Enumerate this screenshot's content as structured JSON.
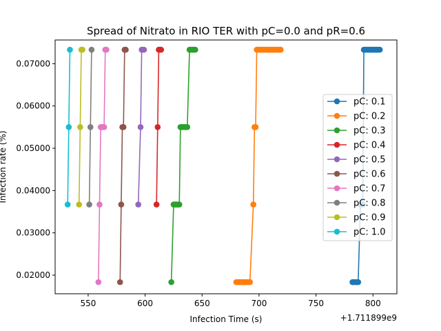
{
  "chart_data": {
    "type": "line",
    "title": "Spread of Nitrato in RIO TER with pC=0.0 and pR=0.6",
    "xlabel": "Infection Time (s)",
    "ylabel": "Infection rate (%)",
    "x_offset_label": "+1.711899e9",
    "xlim": [
      521,
      821
    ],
    "ylim": [
      0.0156,
      0.0756
    ],
    "x_ticks": [
      550,
      600,
      650,
      700,
      750,
      800
    ],
    "x_tick_labels": [
      "550",
      "600",
      "650",
      "700",
      "750",
      "800"
    ],
    "y_ticks": [
      0.02,
      0.03,
      0.04,
      0.05,
      0.06,
      0.07
    ],
    "y_tick_labels": [
      "0.02000",
      "0.03000",
      "0.04000",
      "0.05000",
      "0.06000",
      "0.07000"
    ],
    "grid": false,
    "legend_position": "right",
    "series": [
      {
        "name": "pC: 0.1",
        "color": "#1f77b4",
        "x": [
          782,
          783,
          784,
          785,
          786,
          787,
          789,
          790,
          791,
          792,
          793,
          794,
          795,
          796,
          797,
          798,
          799,
          800,
          801,
          802,
          803,
          804,
          805,
          806
        ],
        "y": [
          0.01835,
          0.01835,
          0.01835,
          0.01835,
          0.01835,
          0.01835,
          0.0367,
          0.0367,
          0.0367,
          0.0733,
          0.0733,
          0.0733,
          0.0733,
          0.0733,
          0.0733,
          0.0733,
          0.0733,
          0.0733,
          0.0733,
          0.0733,
          0.0733,
          0.0733,
          0.0733,
          0.0733
        ]
      },
      {
        "name": "pC: 0.2",
        "color": "#ff7f0e",
        "x": [
          680,
          681,
          682,
          683,
          684,
          685,
          686,
          687,
          688,
          689,
          690,
          691,
          692,
          695,
          696,
          697,
          698,
          699,
          700,
          701,
          702,
          703,
          704,
          705,
          706,
          707,
          708,
          709,
          710,
          711,
          712,
          713,
          714,
          715,
          716,
          717,
          718,
          719
        ],
        "y": [
          0.01835,
          0.01835,
          0.01835,
          0.01835,
          0.01835,
          0.01835,
          0.01835,
          0.01835,
          0.01835,
          0.01835,
          0.01835,
          0.01835,
          0.01835,
          0.0367,
          0.055,
          0.055,
          0.0733,
          0.0733,
          0.0733,
          0.0733,
          0.0733,
          0.0733,
          0.0733,
          0.0733,
          0.0733,
          0.0733,
          0.0733,
          0.0733,
          0.0733,
          0.0733,
          0.0733,
          0.0733,
          0.0733,
          0.0733,
          0.0733,
          0.0733,
          0.0733,
          0.0733
        ]
      },
      {
        "name": "pC: 0.3",
        "color": "#2ca02c",
        "x": [
          623,
          625,
          626,
          627,
          628,
          629,
          630,
          631,
          632,
          633,
          634,
          635,
          636,
          637,
          639,
          640,
          641,
          642,
          643,
          644
        ],
        "y": [
          0.01835,
          0.0367,
          0.0367,
          0.0367,
          0.0367,
          0.0367,
          0.0367,
          0.055,
          0.055,
          0.055,
          0.055,
          0.055,
          0.055,
          0.055,
          0.0733,
          0.0733,
          0.0733,
          0.0733,
          0.0733,
          0.0733
        ]
      },
      {
        "name": "pC: 0.4",
        "color": "#d62728",
        "x": [
          610,
          611,
          612,
          613,
          614
        ],
        "y": [
          0.0367,
          0.055,
          0.0733,
          0.0733,
          0.0733
        ]
      },
      {
        "name": "pC: 0.5",
        "color": "#9467bd",
        "x": [
          594,
          596,
          597,
          598,
          599
        ],
        "y": [
          0.0367,
          0.055,
          0.0733,
          0.0733,
          0.0733
        ]
      },
      {
        "name": "pC: 0.6",
        "color": "#8c564b",
        "x": [
          578,
          579,
          580,
          581,
          582,
          583
        ],
        "y": [
          0.01835,
          0.0367,
          0.055,
          0.055,
          0.0733,
          0.0733
        ]
      },
      {
        "name": "pC: 0.7",
        "color": "#e377c2",
        "x": [
          559,
          560,
          561,
          562,
          563,
          564,
          565,
          566
        ],
        "y": [
          0.01835,
          0.0367,
          0.055,
          0.055,
          0.055,
          0.055,
          0.0733,
          0.0733
        ]
      },
      {
        "name": "pC: 0.8",
        "color": "#7f7f7f",
        "x": [
          551,
          552,
          553
        ],
        "y": [
          0.0367,
          0.055,
          0.0733
        ]
      },
      {
        "name": "pC: 0.9",
        "color": "#bcbd22",
        "x": [
          542,
          543,
          544,
          545
        ],
        "y": [
          0.0367,
          0.055,
          0.0733,
          0.0733
        ]
      },
      {
        "name": "pC: 1.0",
        "color": "#17becf",
        "x": [
          532,
          533,
          534
        ],
        "y": [
          0.0367,
          0.055,
          0.0733
        ]
      }
    ]
  }
}
